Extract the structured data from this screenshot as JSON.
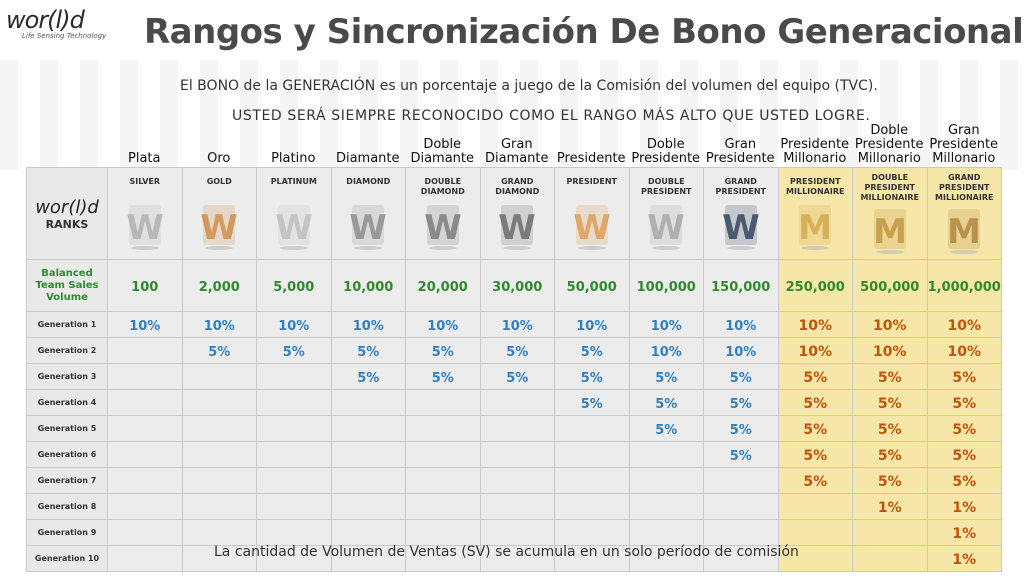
{
  "brand": {
    "logo_text": "wor(l)d",
    "tagline": "Life Sensing Technology"
  },
  "title": "Rangos y Sincronización De Bono Generacional",
  "subtitle1": "El BONO de la GENERACIÓN es un porcentaje a juego de la Comisión del volumen del equipo (TVC).",
  "subtitle2": "USTED SERÁ SIEMPRE RECONOCIDO COMO EL RANGO MÁS ALTO QUE USTED LOGRE.",
  "table_header": {
    "logo": "wor(l)d",
    "ranks_label": "RANKS"
  },
  "ranks": [
    {
      "es": "Plata",
      "en": "SILVER",
      "bsv": "100",
      "color": "#b8b8b8"
    },
    {
      "es": "Oro",
      "en": "GOLD",
      "bsv": "2,000",
      "color": "#d39a5e"
    },
    {
      "es": "Platino",
      "en": "PLATINUM",
      "bsv": "5,000",
      "color": "#c4c4c4"
    },
    {
      "es": "Diamante",
      "en": "DIAMOND",
      "bsv": "10,000",
      "color": "#9a9a9a"
    },
    {
      "es": "Doble Diamante",
      "en": "DOUBLE DIAMOND",
      "bsv": "20,000",
      "color": "#8a8a8a"
    },
    {
      "es": "Gran Diamante",
      "en": "GRAND DIAMOND",
      "bsv": "30,000",
      "color": "#7a7a7a"
    },
    {
      "es": "Presidente",
      "en": "PRESIDENT",
      "bsv": "50,000",
      "color": "#e0a66a"
    },
    {
      "es": "Doble Presidente",
      "en": "DOUBLE PRESIDENT",
      "bsv": "100,000",
      "color": "#b0b0b0"
    },
    {
      "es": "Gran Presidente",
      "en": "GRAND PRESIDENT",
      "bsv": "150,000",
      "color": "#4a5a70"
    },
    {
      "es": "Presidente Millonario",
      "en": "PRESIDENT MILLIONAIRE",
      "bsv": "250,000",
      "color": "#d9b05a"
    },
    {
      "es": "Doble Presidente Millonario",
      "en": "DOUBLE PRESIDENT MILLIONAIRE",
      "bsv": "500,000",
      "color": "#c9a050"
    },
    {
      "es": "Gran Presidente Millonario",
      "en": "GRAND PRESIDENT MILLIONAIRE",
      "bsv": "1,000,000",
      "color": "#b8924a"
    }
  ],
  "bsv_label": "Balanced Team Sales Volume",
  "generations": [
    {
      "label": "Generation 1",
      "values": [
        "10%",
        "10%",
        "10%",
        "10%",
        "10%",
        "10%",
        "10%",
        "10%",
        "10%",
        "10%",
        "10%",
        "10%"
      ]
    },
    {
      "label": "Generation 2",
      "values": [
        "",
        "5%",
        "5%",
        "5%",
        "5%",
        "5%",
        "5%",
        "10%",
        "10%",
        "10%",
        "10%",
        "10%"
      ]
    },
    {
      "label": "Generation 3",
      "values": [
        "",
        "",
        "",
        "5%",
        "5%",
        "5%",
        "5%",
        "5%",
        "5%",
        "5%",
        "5%",
        "5%"
      ]
    },
    {
      "label": "Generation 4",
      "values": [
        "",
        "",
        "",
        "",
        "",
        "",
        "5%",
        "5%",
        "5%",
        "5%",
        "5%",
        "5%"
      ]
    },
    {
      "label": "Generation 5",
      "values": [
        "",
        "",
        "",
        "",
        "",
        "",
        "",
        "5%",
        "5%",
        "5%",
        "5%",
        "5%"
      ]
    },
    {
      "label": "Generation 6",
      "values": [
        "",
        "",
        "",
        "",
        "",
        "",
        "",
        "",
        "5%",
        "5%",
        "5%",
        "5%"
      ]
    },
    {
      "label": "Generation 7",
      "values": [
        "",
        "",
        "",
        "",
        "",
        "",
        "",
        "",
        "",
        "5%",
        "5%",
        "5%"
      ]
    },
    {
      "label": "Generation 8",
      "values": [
        "",
        "",
        "",
        "",
        "",
        "",
        "",
        "",
        "",
        "",
        "1%",
        "1%"
      ]
    },
    {
      "label": "Generation 9",
      "values": [
        "",
        "",
        "",
        "",
        "",
        "",
        "",
        "",
        "",
        "",
        "",
        "1%"
      ]
    },
    {
      "label": "Generation 10",
      "values": [
        "",
        "",
        "",
        "",
        "",
        "",
        "",
        "",
        "",
        "",
        "",
        "1%"
      ]
    }
  ],
  "footer": "La cantidad de Volumen de Ventas (SV) se acumula en un solo período de comisión"
}
